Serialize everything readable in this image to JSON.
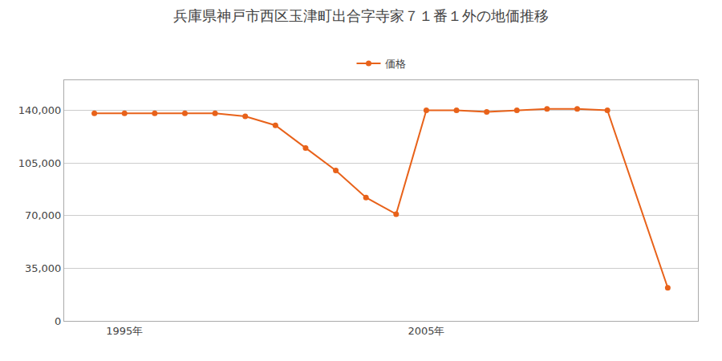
{
  "chart_data": {
    "type": "line",
    "title": "兵庫県神戸市西区玉津町出合字寺家７１番１外の地価推移",
    "x": [
      1994,
      1995,
      1996,
      1997,
      1998,
      1999,
      2000,
      2001,
      2002,
      2003,
      2004,
      2005,
      2006,
      2007,
      2008,
      2009,
      2010,
      2011,
      2013
    ],
    "series": [
      {
        "name": "価格",
        "color": "#e8621a",
        "marker": "circle",
        "values": [
          138000,
          138000,
          138000,
          138000,
          138000,
          136000,
          130000,
          115000,
          100000,
          82000,
          71000,
          140000,
          140000,
          139000,
          140000,
          141000,
          141000,
          140000,
          22000
        ]
      }
    ],
    "xlim": [
      1993,
      2014
    ],
    "xticks": [
      {
        "value": 1995,
        "label": "1995年"
      },
      {
        "value": 2005,
        "label": "2005年"
      }
    ],
    "ylim": [
      0,
      160000
    ],
    "yticks": [
      0,
      {
        "value": 35000,
        "label": "35,000"
      },
      {
        "value": 70000,
        "label": "70,000"
      },
      {
        "value": 105000,
        "label": "105,000"
      },
      {
        "value": 140000,
        "label": "140,000"
      }
    ],
    "grid": true,
    "legend": "top"
  }
}
